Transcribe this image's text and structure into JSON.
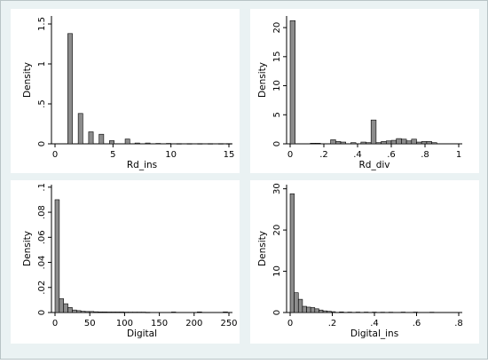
{
  "figure": {
    "background": "#eaf2f3",
    "panel_background": "#ffffff",
    "bar_fill": "#8c8c8c",
    "bar_stroke": "#000000"
  },
  "chart_data": [
    {
      "type": "bar",
      "title": "",
      "xlabel": "Rd_ins",
      "ylabel": "Density",
      "xlim": [
        0,
        15
      ],
      "ylim": [
        0,
        1.6
      ],
      "xticks": [
        0,
        5,
        10,
        15
      ],
      "yticks": [
        0,
        0.5,
        1,
        1.5
      ],
      "xtick_labels": [
        "0",
        "5",
        "10",
        "15"
      ],
      "ytick_labels": [
        "0",
        ".5",
        "1",
        "1.5"
      ],
      "bin_width": 0.4,
      "bin_centers": [
        1.3,
        2.2,
        3.1,
        4.0,
        4.9,
        6.25,
        7.1,
        8.0,
        8.9,
        9.8,
        10.7,
        11.6,
        12.5,
        13.4,
        14.3,
        15.0
      ],
      "values": [
        1.38,
        0.38,
        0.15,
        0.12,
        0.04,
        0.06,
        0.01,
        0.01,
        0.005,
        0.005,
        0.003,
        0.003,
        0.003,
        0.003,
        0.003,
        0.003
      ]
    },
    {
      "type": "bar",
      "title": "",
      "xlabel": "Rd_div",
      "ylabel": "Density",
      "xlim": [
        0,
        1
      ],
      "ylim": [
        0,
        22
      ],
      "xticks": [
        0,
        0.2,
        0.4,
        0.6,
        0.8,
        1
      ],
      "yticks": [
        0,
        5,
        10,
        15,
        20
      ],
      "xtick_labels": [
        "0",
        ".2",
        ".4",
        ".6",
        ".8",
        "1"
      ],
      "ytick_labels": [
        "0",
        "5",
        "10",
        "15",
        "20"
      ],
      "bin_width": 0.03,
      "bin_centers": [
        0.015,
        0.135,
        0.165,
        0.255,
        0.285,
        0.315,
        0.375,
        0.435,
        0.465,
        0.495,
        0.525,
        0.555,
        0.585,
        0.615,
        0.645,
        0.675,
        0.705,
        0.735,
        0.765,
        0.795,
        0.825,
        0.855
      ],
      "values": [
        21.2,
        0.1,
        0.1,
        0.7,
        0.4,
        0.3,
        0.2,
        0.3,
        0.2,
        4.1,
        0.2,
        0.4,
        0.5,
        0.6,
        0.9,
        0.8,
        0.5,
        0.8,
        0.3,
        0.4,
        0.4,
        0.2
      ]
    },
    {
      "type": "bar",
      "title": "",
      "xlabel": "Digital",
      "ylabel": "Density",
      "xlim": [
        0,
        250
      ],
      "ylim": [
        0,
        0.102
      ],
      "xticks": [
        0,
        50,
        100,
        150,
        200,
        250
      ],
      "yticks": [
        0,
        0.02,
        0.04,
        0.06,
        0.08,
        0.1
      ],
      "xtick_labels": [
        "0",
        "50",
        "100",
        "150",
        "200",
        "250"
      ],
      "ytick_labels": [
        "0",
        ".02",
        ".04",
        ".06",
        ".08",
        ".1"
      ],
      "bin_width": 6.2,
      "bin_centers": [
        3.1,
        9.3,
        15.5,
        21.7,
        27.9,
        34.1,
        40.3,
        46.5,
        52.7,
        58.9,
        65.1,
        71.3,
        77.5,
        83.7,
        89.9,
        96.1,
        102.3,
        108.5,
        114.7,
        120.9,
        127.1,
        133.3,
        170.5,
        207.7,
        244.9
      ],
      "values": [
        0.09,
        0.011,
        0.007,
        0.004,
        0.002,
        0.0015,
        0.001,
        0.0008,
        0.0008,
        0.0006,
        0.0005,
        0.0005,
        0.0004,
        0.0004,
        0.0004,
        0.0004,
        0.0003,
        0.0003,
        0.0003,
        0.0003,
        0.0003,
        0.0002,
        0.0004,
        0.0005,
        0.0005
      ]
    },
    {
      "type": "bar",
      "title": "",
      "xlabel": "Digital_ins",
      "ylabel": "Density",
      "xlim": [
        0,
        0.8
      ],
      "ylim": [
        0,
        31
      ],
      "xticks": [
        0,
        0.2,
        0.4,
        0.6,
        0.8
      ],
      "yticks": [
        0,
        10,
        20,
        30
      ],
      "xtick_labels": [
        "0",
        ".2",
        ".4",
        ".6",
        ".8"
      ],
      "ytick_labels": [
        "0",
        "10",
        "20",
        "30"
      ],
      "bin_width": 0.0195,
      "bin_centers": [
        0.00975,
        0.02925,
        0.04875,
        0.06825,
        0.08775,
        0.10725,
        0.12675,
        0.14625,
        0.16575,
        0.18525,
        0.20475,
        0.24375,
        0.28275,
        0.32175,
        0.36075,
        0.39975,
        0.43875,
        0.47775,
        0.53625,
        0.59475,
        0.67275
      ],
      "values": [
        28.8,
        4.8,
        3.2,
        1.5,
        1.3,
        1.2,
        0.9,
        0.6,
        0.4,
        0.3,
        0.2,
        0.15,
        0.1,
        0.1,
        0.1,
        0.1,
        0.08,
        0.08,
        0.1,
        0.1,
        0.08
      ]
    }
  ]
}
